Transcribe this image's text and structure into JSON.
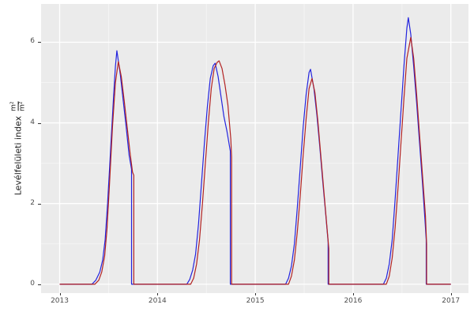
{
  "figure": {
    "background": "#ffffff",
    "panel_background": "#ebebeb",
    "grid_major_color": "#ffffff",
    "grid_minor_color": "rgba(255,255,255,0.55)",
    "tick_mark_color": "#333333",
    "tick_label_color": "#4d4d4d",
    "axis_title_color": "#1a1a1a"
  },
  "y_axis_label": {
    "text": "Levélfelületi index",
    "unit_numerator": "m²",
    "unit_denominator": "m²"
  },
  "chart_data": {
    "type": "line",
    "title": "",
    "xlabel": "",
    "ylabel": "Levélfelületi index (m²/m²)",
    "xlim": [
      2012.81,
      2017.18
    ],
    "ylim": [
      -0.22,
      6.95
    ],
    "grid": true,
    "legend_position": "none",
    "x_ticks": [
      2013,
      2014,
      2015,
      2016,
      2017
    ],
    "x_minor": [
      2013.5,
      2014.5,
      2015.5,
      2016.5
    ],
    "y_ticks": [
      0,
      2,
      4,
      6
    ],
    "y_minor": [
      1,
      3,
      5,
      7
    ],
    "series": [
      {
        "name": "blue",
        "color": "#2323de",
        "points": [
          [
            2013.0,
            0
          ],
          [
            2013.33,
            0
          ],
          [
            2013.37,
            0.1
          ],
          [
            2013.41,
            0.3
          ],
          [
            2013.44,
            0.6
          ],
          [
            2013.465,
            1.1
          ],
          [
            2013.49,
            2.0
          ],
          [
            2013.52,
            3.3
          ],
          [
            2013.55,
            4.6
          ],
          [
            2013.57,
            5.4
          ],
          [
            2013.585,
            5.79
          ],
          [
            2013.62,
            5.2
          ],
          [
            2013.65,
            4.55
          ],
          [
            2013.68,
            3.9
          ],
          [
            2013.71,
            3.2
          ],
          [
            2013.735,
            2.85
          ],
          [
            2013.735,
            0
          ],
          [
            2014.3,
            0
          ],
          [
            2014.33,
            0.12
          ],
          [
            2014.36,
            0.35
          ],
          [
            2014.39,
            0.75
          ],
          [
            2014.42,
            1.5
          ],
          [
            2014.45,
            2.5
          ],
          [
            2014.48,
            3.5
          ],
          [
            2014.51,
            4.4
          ],
          [
            2014.54,
            5.1
          ],
          [
            2014.57,
            5.42
          ],
          [
            2014.59,
            5.48
          ],
          [
            2014.62,
            5.15
          ],
          [
            2014.65,
            4.65
          ],
          [
            2014.68,
            4.15
          ],
          [
            2014.71,
            3.8
          ],
          [
            2014.745,
            3.3
          ],
          [
            2014.745,
            0
          ],
          [
            2015.31,
            0
          ],
          [
            2015.34,
            0.15
          ],
          [
            2015.37,
            0.45
          ],
          [
            2015.4,
            1.0
          ],
          [
            2015.43,
            1.9
          ],
          [
            2015.46,
            2.9
          ],
          [
            2015.49,
            3.9
          ],
          [
            2015.52,
            4.7
          ],
          [
            2015.55,
            5.25
          ],
          [
            2015.565,
            5.33
          ],
          [
            2015.6,
            4.85
          ],
          [
            2015.63,
            4.2
          ],
          [
            2015.66,
            3.4
          ],
          [
            2015.69,
            2.55
          ],
          [
            2015.72,
            1.75
          ],
          [
            2015.745,
            1.05
          ],
          [
            2015.745,
            0
          ],
          [
            2016.31,
            0
          ],
          [
            2016.34,
            0.15
          ],
          [
            2016.37,
            0.5
          ],
          [
            2016.4,
            1.1
          ],
          [
            2016.43,
            2.1
          ],
          [
            2016.46,
            3.2
          ],
          [
            2016.49,
            4.3
          ],
          [
            2016.52,
            5.4
          ],
          [
            2016.55,
            6.35
          ],
          [
            2016.565,
            6.61
          ],
          [
            2016.59,
            6.2
          ],
          [
            2016.62,
            5.4
          ],
          [
            2016.65,
            4.5
          ],
          [
            2016.68,
            3.5
          ],
          [
            2016.71,
            2.5
          ],
          [
            2016.735,
            1.6
          ],
          [
            2016.748,
            1.1
          ],
          [
            2016.748,
            0
          ],
          [
            2017.0,
            0
          ]
        ]
      },
      {
        "name": "red",
        "color": "#b22222",
        "points": [
          [
            2013.0,
            0
          ],
          [
            2013.36,
            0
          ],
          [
            2013.4,
            0.1
          ],
          [
            2013.43,
            0.3
          ],
          [
            2013.46,
            0.7
          ],
          [
            2013.485,
            1.4
          ],
          [
            2013.51,
            2.5
          ],
          [
            2013.54,
            3.9
          ],
          [
            2013.57,
            5.0
          ],
          [
            2013.6,
            5.52
          ],
          [
            2013.63,
            5.15
          ],
          [
            2013.66,
            4.55
          ],
          [
            2013.69,
            3.9
          ],
          [
            2013.72,
            3.25
          ],
          [
            2013.745,
            2.78
          ],
          [
            2013.758,
            2.7
          ],
          [
            2013.758,
            0
          ],
          [
            2014.34,
            0
          ],
          [
            2014.37,
            0.15
          ],
          [
            2014.4,
            0.5
          ],
          [
            2014.43,
            1.1
          ],
          [
            2014.46,
            2.0
          ],
          [
            2014.49,
            3.0
          ],
          [
            2014.52,
            4.0
          ],
          [
            2014.55,
            4.85
          ],
          [
            2014.58,
            5.35
          ],
          [
            2014.61,
            5.5
          ],
          [
            2014.63,
            5.54
          ],
          [
            2014.66,
            5.35
          ],
          [
            2014.69,
            4.95
          ],
          [
            2014.72,
            4.45
          ],
          [
            2014.75,
            3.6
          ],
          [
            2014.758,
            3.15
          ],
          [
            2014.758,
            0
          ],
          [
            2015.34,
            0
          ],
          [
            2015.37,
            0.2
          ],
          [
            2015.4,
            0.6
          ],
          [
            2015.43,
            1.3
          ],
          [
            2015.46,
            2.2
          ],
          [
            2015.49,
            3.2
          ],
          [
            2015.52,
            4.1
          ],
          [
            2015.55,
            4.85
          ],
          [
            2015.58,
            5.1
          ],
          [
            2015.61,
            4.75
          ],
          [
            2015.64,
            4.05
          ],
          [
            2015.67,
            3.2
          ],
          [
            2015.7,
            2.35
          ],
          [
            2015.73,
            1.5
          ],
          [
            2015.752,
            0.88
          ],
          [
            2015.752,
            0
          ],
          [
            2016.34,
            0
          ],
          [
            2016.37,
            0.2
          ],
          [
            2016.4,
            0.65
          ],
          [
            2016.43,
            1.4
          ],
          [
            2016.46,
            2.4
          ],
          [
            2016.49,
            3.5
          ],
          [
            2016.52,
            4.6
          ],
          [
            2016.55,
            5.6
          ],
          [
            2016.59,
            6.12
          ],
          [
            2016.62,
            5.6
          ],
          [
            2016.65,
            4.7
          ],
          [
            2016.68,
            3.7
          ],
          [
            2016.71,
            2.7
          ],
          [
            2016.74,
            1.7
          ],
          [
            2016.752,
            1.0
          ],
          [
            2016.752,
            0
          ],
          [
            2017.0,
            0
          ]
        ]
      }
    ]
  }
}
